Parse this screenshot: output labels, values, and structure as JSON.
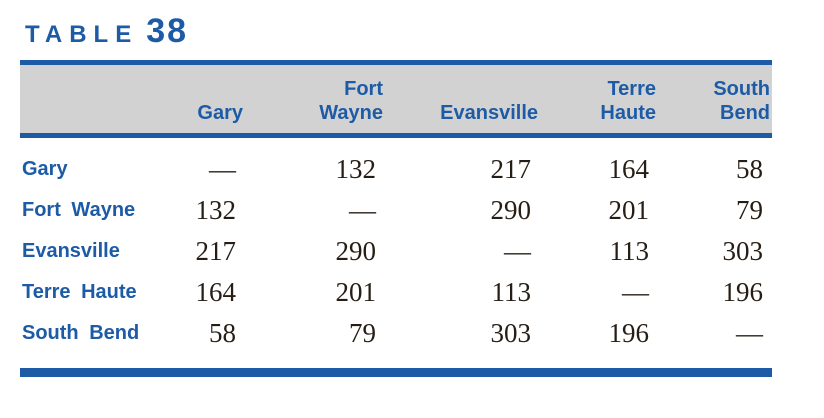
{
  "title": {
    "word": "TABLE",
    "number": "38"
  },
  "table": {
    "description": "Mileage matrix between Indiana cities",
    "columns": [
      {
        "line1": "Gary",
        "line2": ""
      },
      {
        "line1": "Fort",
        "line2": "Wayne"
      },
      {
        "line1": "Evansville",
        "line2": ""
      },
      {
        "line1": "Terre",
        "line2": "Haute"
      },
      {
        "line1": "South",
        "line2": "Bend"
      }
    ],
    "rows": [
      {
        "label": "Gary",
        "values": [
          "—",
          "132",
          "217",
          "164",
          "58"
        ]
      },
      {
        "label": "Fort Wayne",
        "values": [
          "132",
          "—",
          "290",
          "201",
          "79"
        ]
      },
      {
        "label": "Evansville",
        "values": [
          "217",
          "290",
          "—",
          "113",
          "303"
        ]
      },
      {
        "label": "Terre Haute",
        "values": [
          "164",
          "201",
          "113",
          "—",
          "196"
        ]
      },
      {
        "label": "South Bend",
        "values": [
          "58",
          "79",
          "303",
          "196",
          "—"
        ]
      }
    ]
  },
  "colors": {
    "accent_blue": "#1d5ba6",
    "header_bg": "#d3d2d2",
    "value_text": "#261e14"
  }
}
